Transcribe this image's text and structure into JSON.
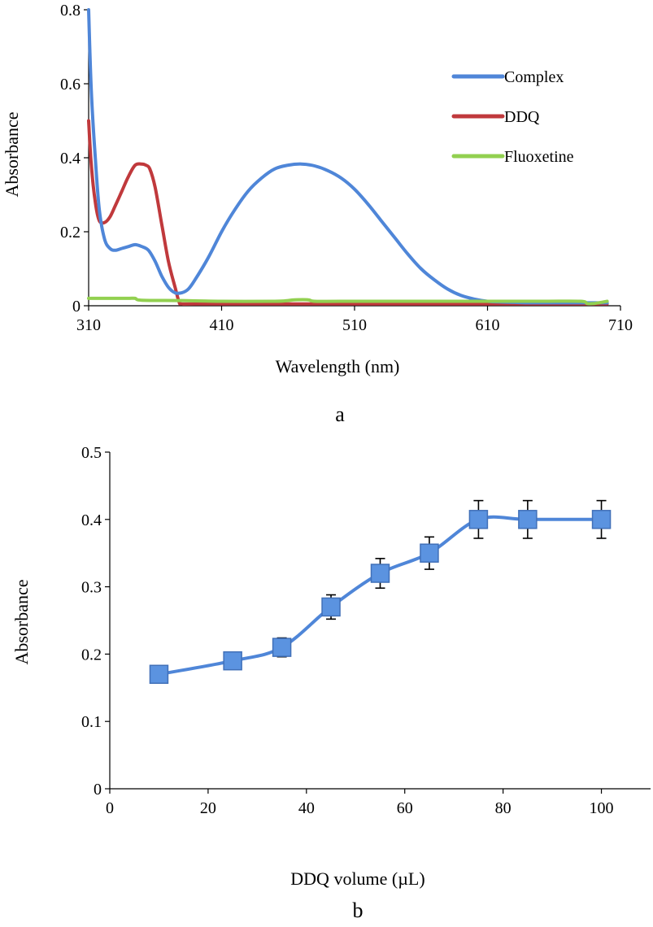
{
  "chart_data": [
    {
      "id": "a",
      "type": "line",
      "panel_label": "a",
      "title": "",
      "xlabel": "Wavelength (nm)",
      "ylabel": "Absorbance",
      "xlim": [
        310,
        710
      ],
      "ylim": [
        0,
        0.8
      ],
      "x_ticks": [
        310,
        410,
        510,
        610,
        710
      ],
      "y_ticks": [
        0,
        0.2,
        0.4,
        0.6,
        0.8
      ],
      "y_tick_labels": [
        "0",
        "0.2",
        "0.4",
        "0.6",
        "0.8"
      ],
      "legend_position": "top-right",
      "grid": false,
      "series": [
        {
          "name": "Complex",
          "color": "#4f86d8",
          "x": [
            310,
            312,
            315,
            318,
            322,
            326,
            330,
            335,
            340,
            345,
            350,
            355,
            360,
            365,
            370,
            375,
            380,
            385,
            390,
            400,
            410,
            420,
            430,
            440,
            450,
            460,
            470,
            480,
            490,
            500,
            510,
            520,
            530,
            540,
            550,
            560,
            570,
            580,
            590,
            600,
            610,
            620,
            630,
            640,
            650,
            660,
            670,
            680,
            690,
            700
          ],
          "y": [
            0.8,
            0.58,
            0.4,
            0.26,
            0.18,
            0.155,
            0.15,
            0.155,
            0.16,
            0.165,
            0.16,
            0.15,
            0.12,
            0.08,
            0.05,
            0.035,
            0.035,
            0.045,
            0.07,
            0.13,
            0.2,
            0.26,
            0.31,
            0.345,
            0.37,
            0.38,
            0.383,
            0.378,
            0.365,
            0.345,
            0.315,
            0.275,
            0.23,
            0.185,
            0.14,
            0.1,
            0.07,
            0.045,
            0.028,
            0.018,
            0.012,
            0.01,
            0.009,
            0.008,
            0.008,
            0.008,
            0.008,
            0.008,
            0.008,
            0.008
          ]
        },
        {
          "name": "DDQ",
          "color": "#c0393c",
          "x": [
            310,
            312,
            315,
            318,
            322,
            326,
            330,
            335,
            340,
            345,
            350,
            353,
            356,
            360,
            365,
            370,
            375,
            378,
            380,
            390,
            450,
            500,
            550,
            600,
            650,
            690,
            700
          ],
          "y": [
            0.5,
            0.38,
            0.28,
            0.23,
            0.225,
            0.24,
            0.27,
            0.31,
            0.35,
            0.38,
            0.383,
            0.38,
            0.37,
            0.32,
            0.22,
            0.12,
            0.05,
            0.01,
            0.005,
            0.005,
            0.005,
            0.005,
            0.005,
            0.005,
            0.005,
            0.005,
            0.005
          ]
        },
        {
          "name": "Fluoxetine",
          "color": "#92d050",
          "x": [
            310,
            330,
            340,
            345,
            350,
            380,
            410,
            450,
            460,
            465,
            475,
            480,
            500,
            550,
            600,
            650,
            680,
            685,
            690,
            700
          ],
          "y": [
            0.02,
            0.02,
            0.02,
            0.02,
            0.015,
            0.014,
            0.012,
            0.012,
            0.014,
            0.016,
            0.016,
            0.012,
            0.012,
            0.012,
            0.012,
            0.012,
            0.012,
            0.006,
            0.006,
            0.012
          ]
        }
      ]
    },
    {
      "id": "b",
      "type": "line",
      "panel_label": "b",
      "title": "",
      "xlabel": "DDQ volume (µL)",
      "ylabel": "Absorbance",
      "xlim": [
        0,
        110
      ],
      "ylim": [
        0,
        0.5
      ],
      "x_ticks": [
        0,
        20,
        40,
        60,
        80,
        100
      ],
      "y_ticks": [
        0,
        0.1,
        0.2,
        0.3,
        0.4,
        0.5
      ],
      "y_tick_labels": [
        "0",
        "0.1",
        "0.2",
        "0.3",
        "0.4",
        "0.5"
      ],
      "grid": false,
      "series": [
        {
          "name": "Absorbance",
          "color": "#4f86d8",
          "marker": "square",
          "x": [
            10,
            25,
            35,
            45,
            55,
            65,
            75,
            85,
            100
          ],
          "y": [
            0.17,
            0.19,
            0.21,
            0.27,
            0.32,
            0.35,
            0.4,
            0.4,
            0.4
          ],
          "error": [
            0,
            0,
            0.014,
            0.018,
            0.022,
            0.024,
            0.028,
            0.028,
            0.028
          ]
        }
      ]
    }
  ]
}
